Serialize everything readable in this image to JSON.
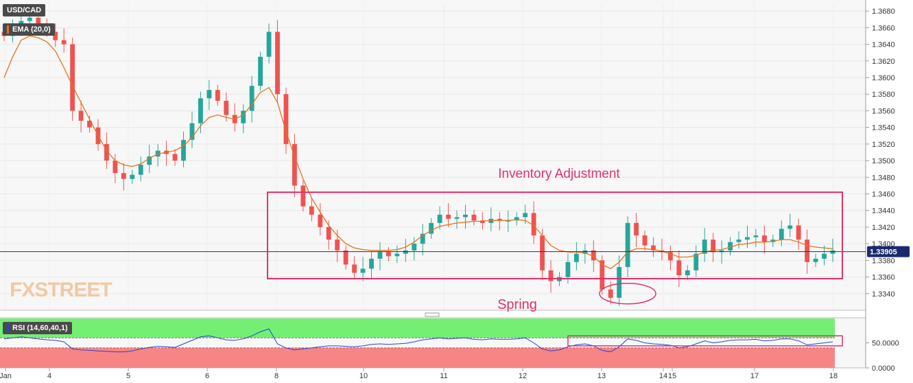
{
  "chart_data": {
    "type": "candlestick",
    "symbol": "USD/CAD",
    "indicator_label": "EMA (20,0)",
    "current_price_label": "1.33905",
    "current_price": 1.33905,
    "ylim": [
      1.332,
      1.369
    ],
    "y_ticks": [
      "1.3340",
      "1.3360",
      "1.3380",
      "1.3400",
      "1.3420",
      "1.3440",
      "1.3460",
      "1.3480",
      "1.3500",
      "1.3520",
      "1.3540",
      "1.3560",
      "1.3580",
      "1.3600",
      "1.3620",
      "1.3640",
      "1.3660",
      "1.3680"
    ],
    "x_ticks": [
      "Jan",
      "4",
      "5",
      "6",
      "8",
      "10",
      "11",
      "12",
      "13",
      "14",
      "15",
      "17",
      "18"
    ],
    "annotations": {
      "inventory_label": "Inventory Adjustment",
      "spring_label": "Spring",
      "box_range": [
        1.3358,
        1.3462
      ],
      "spring_level": 1.334
    },
    "watermark": "FXSTREET",
    "ema_color": "#e8711c",
    "bull_color": "#26a69a",
    "bear_color": "#ef5350",
    "annotation_color": "#e0306a",
    "price_path": [
      1.365,
      1.366,
      1.3668,
      1.3672,
      1.3665,
      1.3655,
      1.3645,
      1.364,
      1.356,
      1.3548,
      1.354,
      1.352,
      1.35,
      1.3485,
      1.3478,
      1.3483,
      1.3495,
      1.3505,
      1.3512,
      1.3508,
      1.35,
      1.3525,
      1.3545,
      1.3575,
      1.3585,
      1.3572,
      1.3555,
      1.3545,
      1.356,
      1.359,
      1.3625,
      1.3655,
      1.358,
      1.352,
      1.347,
      1.3445,
      1.3435,
      1.342,
      1.3405,
      1.3392,
      1.3375,
      1.3365,
      1.337,
      1.3382,
      1.339,
      1.3385,
      1.3388,
      1.3392,
      1.34,
      1.3412,
      1.3425,
      1.3435,
      1.343,
      1.3432,
      1.3435,
      1.3428,
      1.3425,
      1.343,
      1.3428,
      1.3428,
      1.3432,
      1.3437,
      1.341,
      1.3368,
      1.3355,
      1.336,
      1.3378,
      1.3388,
      1.3392,
      1.338,
      1.3345,
      1.3335,
      1.3372,
      1.3425,
      1.341,
      1.3398,
      1.3392,
      1.339,
      1.338,
      1.3362,
      1.3368,
      1.3388,
      1.3405,
      1.339,
      1.3392,
      1.3402,
      1.3405,
      1.3408,
      1.341,
      1.3402,
      1.3405,
      1.3418,
      1.3422,
      1.3405,
      1.3378,
      1.3382,
      1.3388,
      1.3392
    ],
    "ema_path": [
      1.36,
      1.3625,
      1.3645,
      1.365,
      1.3648,
      1.3643,
      1.3632,
      1.3612,
      1.359,
      1.357,
      1.355,
      1.353,
      1.3512,
      1.35,
      1.3495,
      1.3493,
      1.3496,
      1.3503,
      1.3508,
      1.351,
      1.3512,
      1.3518,
      1.3528,
      1.3542,
      1.3552,
      1.3555,
      1.3552,
      1.355,
      1.3555,
      1.3568,
      1.3582,
      1.3588,
      1.357,
      1.3535,
      1.3505,
      1.3478,
      1.3455,
      1.3438,
      1.3422,
      1.341,
      1.34,
      1.3395,
      1.3393,
      1.3392,
      1.3392,
      1.3392,
      1.3393,
      1.3396,
      1.3402,
      1.341,
      1.3416,
      1.3421,
      1.3423,
      1.3425,
      1.3426,
      1.3427,
      1.3427,
      1.3428,
      1.3428,
      1.3428,
      1.3429,
      1.3428,
      1.3422,
      1.341,
      1.3398,
      1.3392,
      1.339,
      1.339,
      1.3389,
      1.3385,
      1.3375,
      1.337,
      1.3378,
      1.339,
      1.3394,
      1.3394,
      1.3393,
      1.3391,
      1.3388,
      1.3384,
      1.3384,
      1.3386,
      1.339,
      1.3392,
      1.3393,
      1.3396,
      1.3399,
      1.34,
      1.3402,
      1.3402,
      1.3403,
      1.3405,
      1.3405,
      1.3402,
      1.3398,
      1.3396,
      1.3395,
      1.3394
    ],
    "rsi": {
      "label": "RSI (14,60,40,1)",
      "ylim": [
        0,
        100
      ],
      "upper": 60,
      "lower": 40,
      "y_ticks": [
        "0.0000",
        "50.0000"
      ],
      "upper_zone_color": "#74ef74",
      "lower_zone_color": "#f78585",
      "values": [
        58,
        60,
        62,
        60,
        58,
        56,
        55,
        52,
        38,
        36,
        35,
        34,
        33,
        32,
        32,
        34,
        38,
        41,
        43,
        42,
        41,
        48,
        55,
        62,
        64,
        60,
        56,
        55,
        58,
        64,
        72,
        78,
        48,
        40,
        36,
        38,
        40,
        42,
        44,
        44,
        43,
        42,
        44,
        47,
        48,
        47,
        48,
        49,
        52,
        56,
        58,
        60,
        58,
        59,
        60,
        57,
        56,
        58,
        57,
        57,
        58,
        60,
        50,
        38,
        34,
        36,
        42,
        46,
        48,
        44,
        35,
        32,
        42,
        58,
        55,
        50,
        48,
        47,
        45,
        40,
        42,
        48,
        54,
        50,
        52,
        55,
        56,
        56,
        57,
        54,
        55,
        58,
        58,
        54,
        46,
        48,
        50,
        52
      ]
    }
  }
}
